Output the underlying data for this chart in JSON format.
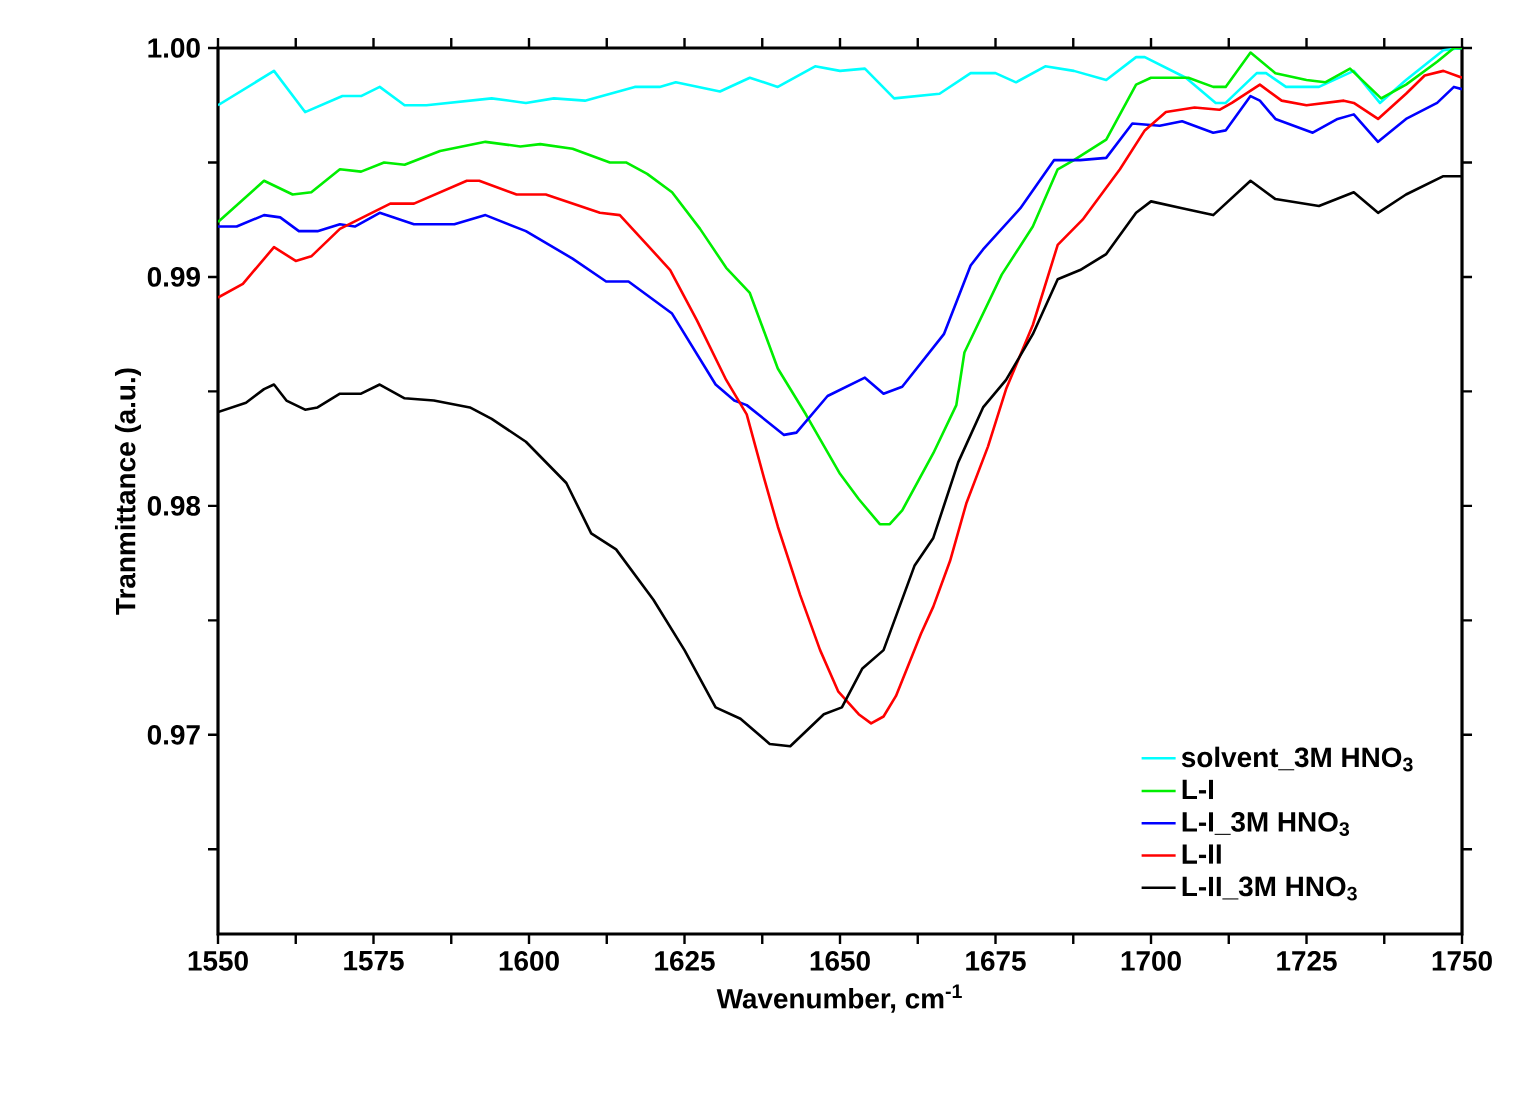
{
  "chart_data": {
    "type": "line",
    "xlabel": "Wavenumber, cm$^{-1}$",
    "ylabel": "Tranmittance (a.u.)",
    "xlim": [
      1550,
      1750
    ],
    "ylim": [
      0.9613,
      1.0
    ],
    "xticks": [
      1550,
      {
        "value": 1562.5,
        "label": null
      },
      1575,
      {
        "value": 1587.5,
        "label": null
      },
      1600,
      {
        "value": 1612.5,
        "label": null
      },
      1625,
      {
        "value": 1637.5,
        "label": null
      },
      1650,
      {
        "value": 1662.5,
        "label": null
      },
      1675,
      {
        "value": 1687.5,
        "label": null
      },
      1700,
      {
        "value": 1712.5,
        "label": null
      },
      1725,
      {
        "value": 1737.5,
        "label": null
      },
      1750
    ],
    "yticks": [
      {
        "value": 0.965,
        "label": null
      },
      {
        "value": 0.97,
        "label": "0.97"
      },
      {
        "value": 0.975,
        "label": null
      },
      {
        "value": 0.98,
        "label": "0.98"
      },
      {
        "value": 0.985,
        "label": null
      },
      {
        "value": 0.99,
        "label": "0.99"
      },
      {
        "value": 0.995,
        "label": null
      },
      {
        "value": 1.0,
        "label": "1.00"
      }
    ],
    "legend": "bottom right",
    "line_style": "solid",
    "series": [
      {
        "name": "solvent_3M HNO$_{3}$",
        "color": "#00ffff",
        "x": [
          1550,
          1559,
          1564,
          1570,
          1573,
          1576,
          1580,
          1583.5,
          1594,
          1599.5,
          1604,
          1609,
          1617,
          1621,
          1623.6,
          1630.7,
          1635.5,
          1640,
          1646,
          1650,
          1654,
          1658.7,
          1666,
          1671,
          1675,
          1678.3,
          1683,
          1687.6,
          1692.8,
          1697.6,
          1699,
          1705.6,
          1710.4,
          1712,
          1717,
          1718.5,
          1721.7,
          1727,
          1732.6,
          1736.8,
          1741,
          1747,
          1750
        ],
        "values": [
          0.9975,
          0.999,
          0.9972,
          0.9979,
          0.9979,
          0.9983,
          0.9975,
          0.9975,
          0.9978,
          0.9976,
          0.9978,
          0.9977,
          0.9983,
          0.9983,
          0.9985,
          0.9981,
          0.9987,
          0.9983,
          0.9992,
          0.999,
          0.9991,
          0.9978,
          0.998,
          0.9989,
          0.9989,
          0.9985,
          0.9992,
          0.999,
          0.9986,
          0.9996,
          0.9996,
          0.9987,
          0.9976,
          0.9976,
          0.9989,
          0.9989,
          0.9983,
          0.9983,
          0.999,
          0.9976,
          0.9986,
          0.9999,
          1.0
        ]
      },
      {
        "name": "L-I",
        "color": "#00ee00",
        "x": [
          1550,
          1557.4,
          1562,
          1565,
          1569.6,
          1573,
          1576.7,
          1580,
          1585.7,
          1593,
          1598.6,
          1601.8,
          1607,
          1613,
          1615.6,
          1619,
          1623,
          1627.5,
          1631.7,
          1635.5,
          1640,
          1644.5,
          1650,
          1653,
          1656.4,
          1658,
          1660,
          1665,
          1668.7,
          1670,
          1676,
          1681,
          1685,
          1687.6,
          1692.8,
          1697.6,
          1700,
          1706,
          1710,
          1712,
          1716,
          1720,
          1725,
          1728,
          1732,
          1737,
          1741,
          1746,
          1748.7,
          1750
        ],
        "values": [
          0.9924,
          0.9942,
          0.9936,
          0.9937,
          0.9947,
          0.9946,
          0.995,
          0.9949,
          0.9955,
          0.9959,
          0.9957,
          0.9958,
          0.9956,
          0.995,
          0.995,
          0.9945,
          0.9937,
          0.9921,
          0.9904,
          0.9893,
          0.986,
          0.984,
          0.9814,
          0.9803,
          0.9792,
          0.9792,
          0.9798,
          0.9823,
          0.9844,
          0.9867,
          0.9901,
          0.9922,
          0.9947,
          0.9951,
          0.996,
          0.9984,
          0.9987,
          0.9987,
          0.9983,
          0.9983,
          0.9998,
          0.9989,
          0.9986,
          0.9985,
          0.9991,
          0.9978,
          0.9984,
          0.9994,
          1.0,
          1.0
        ]
      },
      {
        "name": "L-I_3M HNO$_{3}$",
        "color": "#0000ff",
        "x": [
          1550,
          1553,
          1557.4,
          1560,
          1563,
          1566,
          1569.6,
          1572,
          1576,
          1581.5,
          1588,
          1593,
          1599.5,
          1607,
          1612.4,
          1616,
          1623,
          1630,
          1633,
          1635,
          1641,
          1643,
          1648,
          1654,
          1657,
          1660,
          1666.7,
          1671,
          1673,
          1679,
          1684.4,
          1688.6,
          1692.8,
          1697,
          1701.4,
          1705,
          1710,
          1712,
          1716,
          1717.5,
          1720,
          1726,
          1730,
          1732.6,
          1736.5,
          1741,
          1746,
          1748.7,
          1750
        ],
        "values": [
          0.9922,
          0.9922,
          0.9927,
          0.9926,
          0.992,
          0.992,
          0.9923,
          0.9922,
          0.9928,
          0.9923,
          0.9923,
          0.9927,
          0.992,
          0.9908,
          0.9898,
          0.9898,
          0.9884,
          0.9853,
          0.9846,
          0.9844,
          0.9831,
          0.9832,
          0.9848,
          0.9856,
          0.9849,
          0.9852,
          0.9875,
          0.9905,
          0.9912,
          0.993,
          0.9951,
          0.9951,
          0.9952,
          0.9967,
          0.9966,
          0.9968,
          0.9963,
          0.9964,
          0.9979,
          0.9977,
          0.9969,
          0.9963,
          0.9969,
          0.9971,
          0.9959,
          0.9969,
          0.9976,
          0.9983,
          0.9982
        ]
      },
      {
        "name": "L-II",
        "color": "#ff0000",
        "x": [
          1550,
          1554,
          1559,
          1562.5,
          1565,
          1569.6,
          1574,
          1577.7,
          1581.5,
          1590,
          1592,
          1598,
          1602.7,
          1611.4,
          1614.6,
          1619,
          1622.7,
          1627,
          1631.7,
          1635,
          1637.8,
          1640,
          1643.6,
          1646.8,
          1649.7,
          1653,
          1655,
          1657,
          1659,
          1663,
          1665,
          1667.7,
          1670.3,
          1673.8,
          1676.7,
          1681,
          1685,
          1689,
          1695,
          1699,
          1702.4,
          1707,
          1711,
          1713,
          1717.5,
          1721,
          1725,
          1731,
          1732.6,
          1736.5,
          1741,
          1744,
          1747,
          1750
        ],
        "values": [
          0.9891,
          0.9897,
          0.9913,
          0.9907,
          0.9909,
          0.9921,
          0.9927,
          0.9932,
          0.9932,
          0.9942,
          0.9942,
          0.9936,
          0.9936,
          0.9928,
          0.9927,
          0.9914,
          0.9903,
          0.9881,
          0.9855,
          0.984,
          0.9812,
          0.9791,
          0.9761,
          0.9737,
          0.9719,
          0.9709,
          0.9705,
          0.9708,
          0.9717,
          0.9744,
          0.9756,
          0.9776,
          0.9801,
          0.9826,
          0.9851,
          0.9879,
          0.9914,
          0.9925,
          0.9947,
          0.9964,
          0.9972,
          0.9974,
          0.9973,
          0.9976,
          0.9984,
          0.9977,
          0.9975,
          0.9977,
          0.9976,
          0.9969,
          0.998,
          0.9988,
          0.999,
          0.9987
        ]
      },
      {
        "name": "L-II_3M HNO$_{3}$",
        "color": "#000000",
        "x": [
          1550,
          1554.5,
          1557.4,
          1559,
          1561,
          1564,
          1566,
          1569.6,
          1573,
          1576,
          1580,
          1584.7,
          1590.5,
          1594,
          1599.5,
          1606,
          1610,
          1614,
          1620,
          1625,
          1630,
          1634,
          1638.7,
          1642,
          1647.4,
          1650.3,
          1653.6,
          1657,
          1662,
          1665,
          1669,
          1673,
          1676.7,
          1681,
          1685,
          1688.6,
          1692.8,
          1697.6,
          1700,
          1705,
          1710,
          1716,
          1720,
          1727,
          1732.6,
          1736.5,
          1741,
          1747,
          1750
        ],
        "values": [
          0.9841,
          0.9845,
          0.9851,
          0.9853,
          0.9846,
          0.9842,
          0.9843,
          0.9849,
          0.9849,
          0.9853,
          0.9847,
          0.9846,
          0.9843,
          0.9838,
          0.9828,
          0.981,
          0.9788,
          0.9781,
          0.9759,
          0.9737,
          0.9712,
          0.9707,
          0.9696,
          0.9695,
          0.9709,
          0.9712,
          0.9729,
          0.9737,
          0.9774,
          0.9786,
          0.9819,
          0.9843,
          0.9855,
          0.9875,
          0.9899,
          0.9903,
          0.991,
          0.9928,
          0.9933,
          0.993,
          0.9927,
          0.9942,
          0.9934,
          0.9931,
          0.9937,
          0.9928,
          0.9936,
          0.9944,
          0.9944
        ]
      }
    ]
  }
}
